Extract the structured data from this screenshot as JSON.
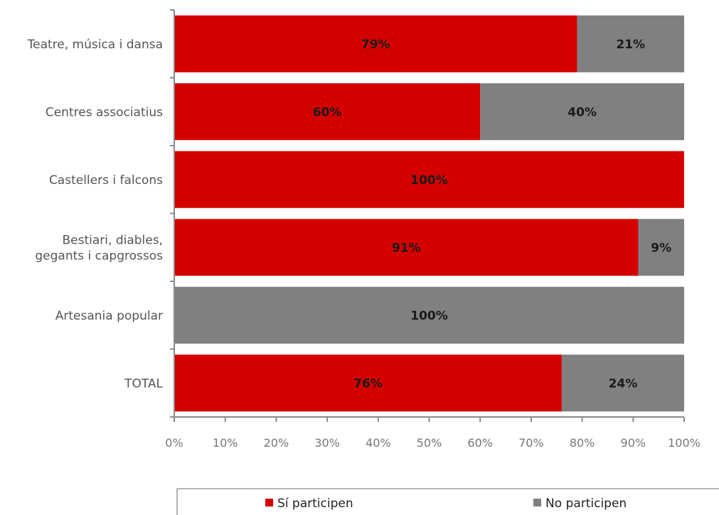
{
  "chart_data": {
    "type": "bar",
    "orientation": "horizontal",
    "stacked": true,
    "categories": [
      [
        "Teatre, música i dansa"
      ],
      [
        "Centres associatius"
      ],
      [
        "Castellers i falcons"
      ],
      [
        "Bestiari, diables,",
        "gegants i capgrossos"
      ],
      [
        "Artesania popular"
      ],
      [
        "TOTAL"
      ]
    ],
    "series": [
      {
        "name": "Sí participen",
        "color": "#d40000",
        "values": [
          79,
          60,
          100,
          91,
          0,
          76
        ]
      },
      {
        "name": "No participen",
        "color": "#808080",
        "values": [
          21,
          40,
          0,
          9,
          100,
          24
        ]
      }
    ],
    "data_labels": [
      [
        "79%",
        "21%"
      ],
      [
        "60%",
        "40%"
      ],
      [
        "100%",
        ""
      ],
      [
        "91%",
        "9%"
      ],
      [
        "",
        "100%"
      ],
      [
        "76%",
        "24%"
      ]
    ],
    "xlim": [
      0,
      100
    ],
    "x_ticks": [
      0,
      10,
      20,
      30,
      40,
      50,
      60,
      70,
      80,
      90,
      100
    ],
    "x_tick_labels": [
      "0%",
      "10%",
      "20%",
      "30%",
      "40%",
      "50%",
      "60%",
      "70%",
      "80%",
      "90%",
      "100%"
    ],
    "grid": false,
    "legend_position": "bottom",
    "title": "",
    "xlabel": "",
    "ylabel": ""
  }
}
